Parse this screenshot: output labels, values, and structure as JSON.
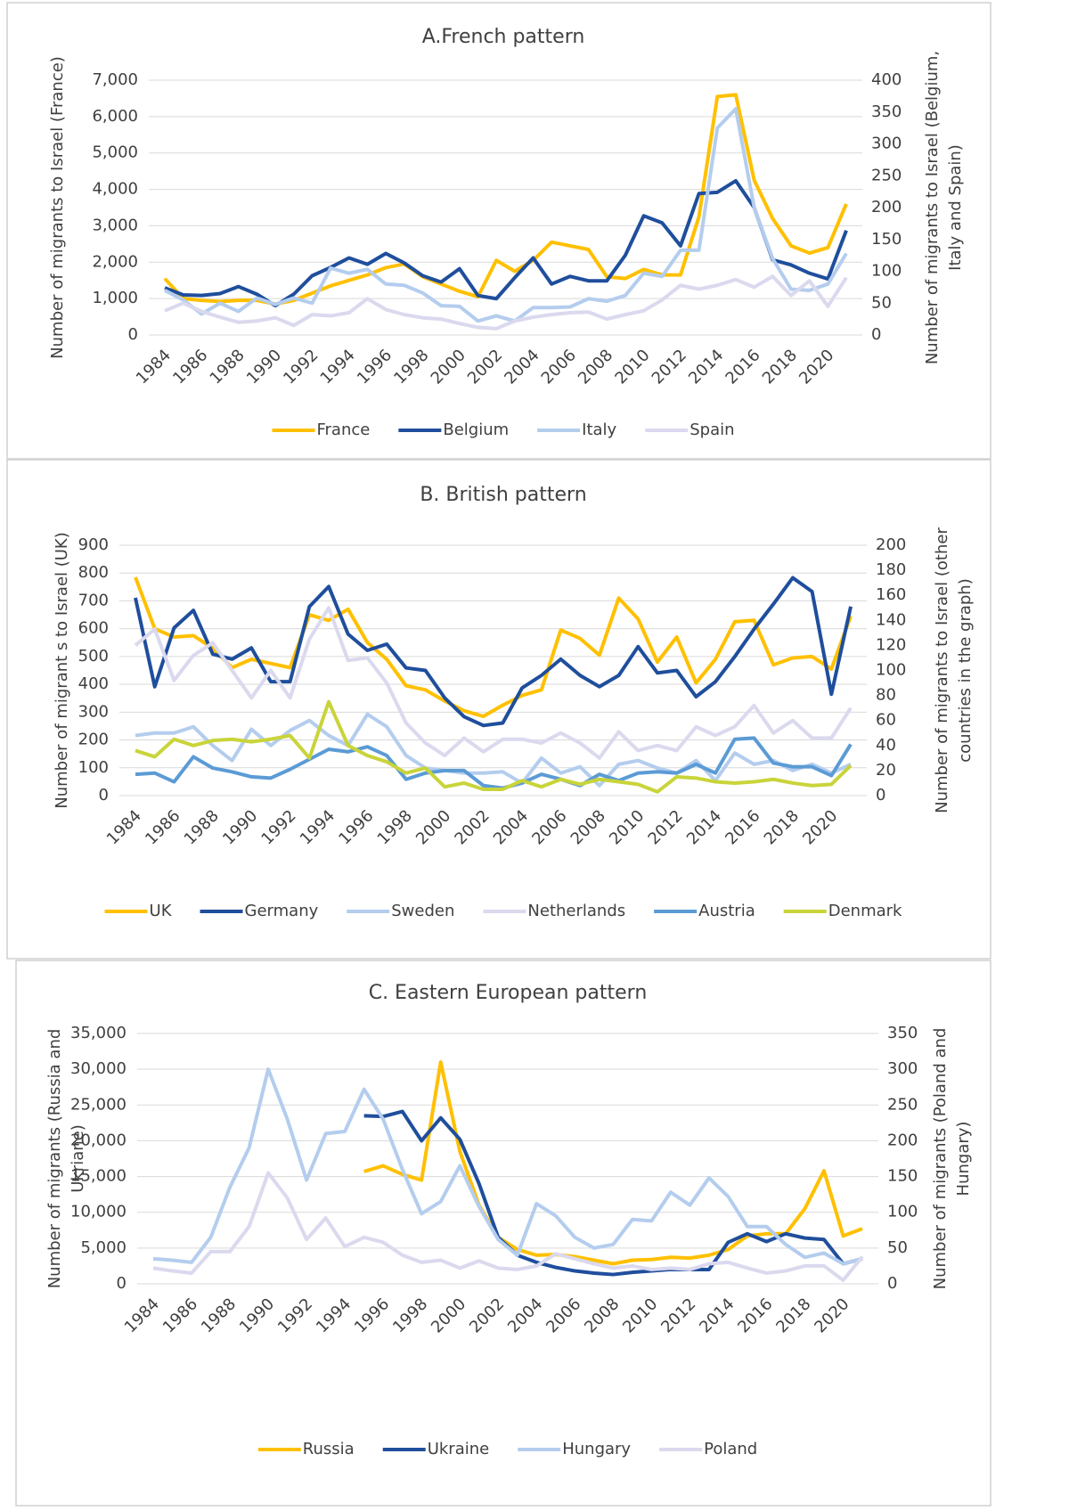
{
  "chart_data": [
    {
      "type": "line",
      "title": "A.French pattern",
      "ylabel": [
        "Number of migrants to Israel (France)"
      ],
      "y2label": [
        "Number of migrants to Israel (Belgium,",
        "Italy and Spain)"
      ],
      "x": [
        1984,
        1985,
        1986,
        1987,
        1988,
        1989,
        1990,
        1991,
        1992,
        1993,
        1994,
        1995,
        1996,
        1997,
        1998,
        1999,
        2000,
        2001,
        2002,
        2003,
        2004,
        2005,
        2006,
        2007,
        2008,
        2009,
        2010,
        2011,
        2012,
        2013,
        2014,
        2015,
        2016,
        2017,
        2018,
        2019,
        2020,
        2021
      ],
      "xlim": [
        1984,
        2021
      ],
      "xticks": [
        1984,
        1986,
        1988,
        1990,
        1992,
        1994,
        1996,
        1998,
        2000,
        2002,
        2004,
        2006,
        2008,
        2010,
        2012,
        2014,
        2016,
        2018,
        2020
      ],
      "ylim": [
        0,
        7000
      ],
      "yticks": [
        0,
        {
          "value": 1000,
          "label": "1,000"
        },
        {
          "value": 2000,
          "label": "2,000"
        },
        {
          "value": 3000,
          "label": "3,000"
        },
        {
          "value": 4000,
          "label": "4,000"
        },
        {
          "value": 5000,
          "label": "5,000"
        },
        {
          "value": 6000,
          "label": "6,000"
        },
        {
          "value": 7000,
          "label": "7,000"
        }
      ],
      "y2lim": [
        0,
        400
      ],
      "y2ticks": [
        0,
        50,
        100,
        150,
        200,
        250,
        300,
        350,
        400
      ],
      "grid": true,
      "legend": "bottom",
      "series": [
        {
          "name": "France",
          "color": "#ffc000",
          "values": [
            1550,
            1000,
            950,
            920,
            950,
            950,
            850,
            950,
            1150,
            1350,
            1500,
            1650,
            1850,
            1950,
            1600,
            1400,
            1200,
            1050,
            2050,
            1750,
            2050,
            2550,
            2450,
            2350,
            1600,
            1550,
            1800,
            1650,
            1650,
            3250,
            6550,
            6600,
            4250,
            3200,
            2450,
            2250,
            2400,
            3600
          ]
        },
        {
          "name": "Belgium",
          "color": "#1f4e9c",
          "axis": "y2",
          "values": [
            74,
            63,
            62,
            65,
            76,
            64,
            46,
            64,
            93,
            106,
            121,
            111,
            128,
            113,
            93,
            83,
            104,
            62,
            57,
            90,
            121,
            80,
            92,
            85,
            85,
            125,
            187,
            176,
            140,
            222,
            224,
            242,
            200,
            118,
            110,
            97,
            88,
            164
          ]
        },
        {
          "name": "Italy",
          "color": "#b4cdee",
          "axis": "y2",
          "values": [
            70,
            55,
            33,
            50,
            37,
            58,
            48,
            58,
            50,
            105,
            97,
            103,
            80,
            78,
            66,
            46,
            45,
            22,
            30,
            22,
            43,
            43,
            44,
            57,
            53,
            62,
            97,
            92,
            133,
            133,
            325,
            355,
            200,
            120,
            72,
            70,
            80,
            128
          ]
        },
        {
          "name": "Spain",
          "color": "#dad9ee",
          "axis": "y2",
          "values": [
            38,
            50,
            37,
            28,
            20,
            22,
            27,
            15,
            32,
            30,
            35,
            57,
            40,
            32,
            27,
            25,
            18,
            12,
            10,
            22,
            28,
            32,
            35,
            36,
            25,
            32,
            38,
            55,
            78,
            72,
            78,
            87,
            75,
            92,
            62,
            85,
            45,
            90
          ]
        }
      ]
    },
    {
      "type": "line",
      "title": "B. British pattern",
      "ylabel": [
        "Number of migrant s to Israel (UK)"
      ],
      "y2label": [
        "Number of migrants to Israel (other",
        "countries in the graph)"
      ],
      "x": [
        1984,
        1985,
        1986,
        1987,
        1988,
        1989,
        1990,
        1991,
        1992,
        1993,
        1994,
        1995,
        1996,
        1997,
        1998,
        1999,
        2000,
        2001,
        2002,
        2003,
        2004,
        2005,
        2006,
        2007,
        2008,
        2009,
        2010,
        2011,
        2012,
        2013,
        2014,
        2015,
        2016,
        2017,
        2018,
        2019,
        2020,
        2021
      ],
      "xlim": [
        1984,
        2021
      ],
      "xticks": [
        1984,
        1986,
        1988,
        1990,
        1992,
        1994,
        1996,
        1998,
        2000,
        2002,
        2004,
        2006,
        2008,
        2010,
        2012,
        2014,
        2016,
        2018,
        2020
      ],
      "ylim": [
        0,
        900
      ],
      "yticks": [
        0,
        100,
        200,
        300,
        400,
        500,
        600,
        700,
        800,
        900
      ],
      "y2lim": [
        0,
        200
      ],
      "y2ticks": [
        0,
        20,
        40,
        60,
        80,
        100,
        120,
        140,
        160,
        180,
        200
      ],
      "grid": true,
      "legend": "bottom",
      "series": [
        {
          "name": "UK",
          "color": "#ffc000",
          "values": [
            785,
            600,
            570,
            575,
            530,
            460,
            490,
            475,
            460,
            650,
            630,
            670,
            550,
            490,
            395,
            380,
            340,
            305,
            285,
            325,
            360,
            380,
            595,
            565,
            505,
            710,
            635,
            480,
            570,
            405,
            490,
            625,
            630,
            470,
            495,
            500,
            455,
            645
          ]
        },
        {
          "name": "Germany",
          "color": "#1f4e9c",
          "axis": "y2",
          "values": [
            158,
            87,
            134,
            148,
            113,
            109,
            118,
            91,
            91,
            151,
            167,
            129,
            116,
            121,
            102,
            100,
            78,
            63,
            56,
            58,
            86,
            96,
            109,
            96,
            87,
            96,
            119,
            98,
            100,
            79,
            91,
            111,
            133,
            153,
            174,
            163,
            81,
            151
          ]
        },
        {
          "name": "Sweden",
          "color": "#b4cdee",
          "axis": "y2",
          "values": [
            48,
            50,
            50,
            55,
            40,
            28,
            53,
            40,
            52,
            60,
            48,
            40,
            65,
            55,
            32,
            22,
            20,
            18,
            18,
            19,
            10,
            30,
            18,
            23,
            8,
            25,
            28,
            22,
            18,
            28,
            12,
            34,
            25,
            28,
            20,
            25,
            18,
            25
          ]
        },
        {
          "name": "Netherlands",
          "color": "#dad9ee",
          "axis": "y2",
          "values": [
            120,
            133,
            92,
            112,
            122,
            100,
            78,
            100,
            78,
            125,
            150,
            108,
            110,
            90,
            58,
            42,
            32,
            46,
            35,
            45,
            45,
            42,
            50,
            42,
            30,
            51,
            36,
            40,
            36,
            55,
            48,
            55,
            72,
            50,
            60,
            46,
            46,
            70
          ]
        },
        {
          "name": "Austria",
          "color": "#5b9bd5",
          "axis": "y2",
          "values": [
            17,
            18,
            11,
            31,
            22,
            19,
            15,
            14,
            21,
            29,
            37,
            35,
            39,
            32,
            13,
            18,
            20,
            20,
            8,
            6,
            10,
            17,
            13,
            8,
            17,
            12,
            18,
            19,
            18,
            25,
            18,
            45,
            46,
            26,
            23,
            23,
            16,
            41
          ]
        },
        {
          "name": "Denmark",
          "color": "#c9d43a",
          "axis": "y2",
          "values": [
            36,
            31,
            45,
            40,
            44,
            45,
            43,
            45,
            48,
            30,
            75,
            40,
            32,
            27,
            18,
            22,
            7,
            10,
            5,
            5,
            12,
            7,
            13,
            9,
            13,
            11,
            9,
            3,
            15,
            14,
            11,
            10,
            11,
            13,
            10,
            8,
            9,
            24
          ]
        }
      ]
    },
    {
      "type": "line",
      "title": "C. Eastern European pattern",
      "ylabel": [
        "Number of migrants (Russia and",
        "Ukriane)"
      ],
      "y2label": [
        "Number of migrants (Poland and",
        "Hungary)"
      ],
      "x": [
        1984,
        1985,
        1986,
        1987,
        1988,
        1989,
        1990,
        1991,
        1992,
        1993,
        1994,
        1995,
        1996,
        1997,
        1998,
        1999,
        2000,
        2001,
        2002,
        2003,
        2004,
        2005,
        2006,
        2007,
        2008,
        2009,
        2010,
        2011,
        2012,
        2013,
        2014,
        2015,
        2016,
        2017,
        2018,
        2019,
        2020,
        2021
      ],
      "xlim": [
        1984,
        2021
      ],
      "xticks": [
        1984,
        1986,
        1988,
        1990,
        1992,
        1994,
        1996,
        1998,
        2000,
        2002,
        2004,
        2006,
        2008,
        2010,
        2012,
        2014,
        2016,
        2018,
        2020
      ],
      "ylim": [
        0,
        35000
      ],
      "yticks": [
        0,
        {
          "value": 5000,
          "label": "5,000"
        },
        {
          "value": 10000,
          "label": "10,000"
        },
        {
          "value": 15000,
          "label": "15,000"
        },
        {
          "value": 20000,
          "label": "20,000"
        },
        {
          "value": 25000,
          "label": "25,000"
        },
        {
          "value": 30000,
          "label": "30,000"
        },
        {
          "value": 35000,
          "label": "35,000"
        }
      ],
      "y2lim": [
        0,
        350
      ],
      "y2ticks": [
        0,
        50,
        100,
        150,
        200,
        250,
        300,
        350
      ],
      "grid": true,
      "legend": "bottom",
      "series": [
        {
          "name": "Russia",
          "color": "#ffc000",
          "values": [
            null,
            null,
            null,
            null,
            null,
            null,
            null,
            null,
            null,
            null,
            null,
            15700,
            16500,
            15300,
            14500,
            31000,
            18500,
            11000,
            6500,
            4800,
            4000,
            4100,
            3800,
            3300,
            2800,
            3300,
            3400,
            3700,
            3600,
            4000,
            4800,
            6700,
            7000,
            7000,
            10500,
            15800,
            6700,
            7700
          ]
        },
        {
          "name": "Ukraine",
          "color": "#1f4e9c",
          "values": [
            null,
            null,
            null,
            null,
            null,
            null,
            null,
            null,
            null,
            null,
            null,
            23500,
            23400,
            24100,
            20000,
            23200,
            20200,
            14000,
            6500,
            4000,
            3000,
            2300,
            1800,
            1500,
            1300,
            1600,
            1800,
            2000,
            2000,
            2000,
            5800,
            7000,
            5900,
            7000,
            6400,
            6200,
            2800,
            3500
          ]
        },
        {
          "name": "Hungary",
          "color": "#b4cdee",
          "axis": "y2",
          "values": [
            35,
            33,
            30,
            65,
            135,
            190,
            300,
            230,
            145,
            210,
            213,
            272,
            230,
            160,
            98,
            115,
            165,
            108,
            62,
            40,
            112,
            95,
            65,
            50,
            55,
            90,
            88,
            128,
            110,
            148,
            122,
            80,
            80,
            55,
            37,
            43,
            28,
            35
          ]
        },
        {
          "name": "Poland",
          "color": "#dad9ee",
          "axis": "y2",
          "values": [
            22,
            18,
            15,
            45,
            45,
            80,
            155,
            120,
            62,
            92,
            52,
            65,
            58,
            40,
            30,
            33,
            22,
            32,
            22,
            20,
            25,
            42,
            35,
            28,
            22,
            25,
            20,
            22,
            20,
            28,
            30,
            22,
            15,
            18,
            25,
            25,
            5,
            38
          ]
        }
      ]
    }
  ]
}
